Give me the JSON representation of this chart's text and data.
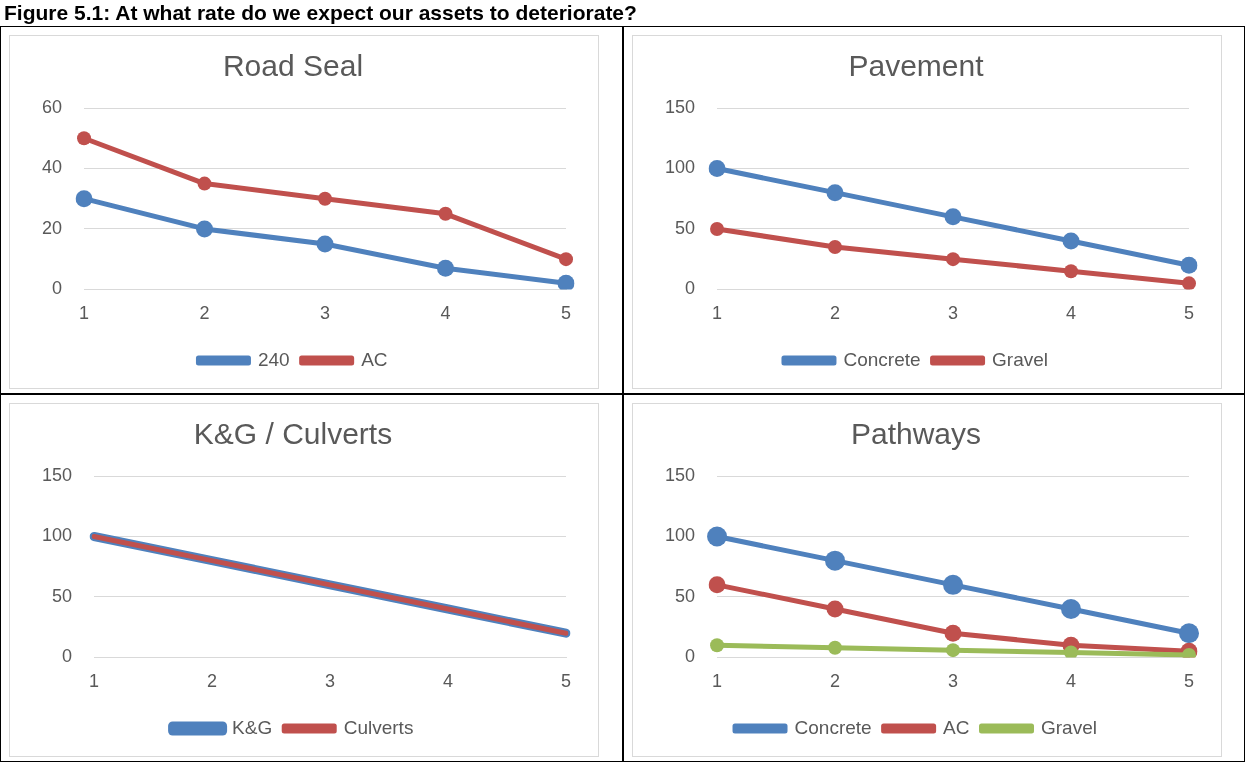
{
  "chart_data": [
    {
      "type": "line",
      "title": "Road Seal",
      "annotations": [
        "Figure 5.1: At what rate do we expect our assets to deteriorate?"
      ],
      "categories": [
        "1",
        "2",
        "3",
        "4",
        "5"
      ],
      "series": [
        {
          "name": "240",
          "color": "#4f81bd",
          "values": [
            30,
            20,
            15,
            7,
            2
          ]
        },
        {
          "name": "AC",
          "color": "#c0504d",
          "values": [
            50,
            35,
            30,
            25,
            10
          ]
        }
      ],
      "ylim": [
        0,
        60
      ],
      "yticks": [
        0,
        20,
        40,
        60
      ],
      "grid": "y",
      "legend": "bottom",
      "marker": "circle"
    },
    {
      "type": "line",
      "title": "Pavement",
      "categories": [
        "1",
        "2",
        "3",
        "4",
        "5"
      ],
      "series": [
        {
          "name": "Concrete",
          "color": "#4f81bd",
          "values": [
            100,
            80,
            60,
            40,
            20
          ]
        },
        {
          "name": "Gravel",
          "color": "#c0504d",
          "values": [
            50,
            35,
            25,
            15,
            5
          ]
        }
      ],
      "ylim": [
        0,
        150
      ],
      "yticks": [
        0,
        50,
        100,
        150
      ],
      "grid": "y",
      "legend": "bottom",
      "marker": "circle"
    },
    {
      "type": "line",
      "title": "K&G / Culverts",
      "categories": [
        "1",
        "2",
        "3",
        "4",
        "5"
      ],
      "series": [
        {
          "name": "K&G",
          "color": "#4f81bd",
          "values": [
            100,
            80,
            60,
            40,
            20
          ]
        },
        {
          "name": "Culverts",
          "color": "#c0504d",
          "values": [
            100,
            80,
            60,
            40,
            20
          ]
        }
      ],
      "ylim": [
        0,
        150
      ],
      "yticks": [
        0,
        50,
        100,
        150
      ],
      "grid": "y",
      "legend": "bottom",
      "marker": "none"
    },
    {
      "type": "line",
      "title": "Pathways",
      "categories": [
        "1",
        "2",
        "3",
        "4",
        "5"
      ],
      "series": [
        {
          "name": "Concrete",
          "color": "#4f81bd",
          "values": [
            100,
            80,
            60,
            40,
            20
          ]
        },
        {
          "name": "AC",
          "color": "#c0504d",
          "values": [
            60,
            40,
            20,
            10,
            5
          ]
        },
        {
          "name": "Gravel",
          "color": "#9bbb59",
          "values": [
            10,
            8,
            6,
            4,
            2
          ]
        }
      ],
      "ylim": [
        0,
        150
      ],
      "yticks": [
        0,
        50,
        100,
        150
      ],
      "grid": "y",
      "legend": "bottom",
      "marker": "circle"
    }
  ]
}
